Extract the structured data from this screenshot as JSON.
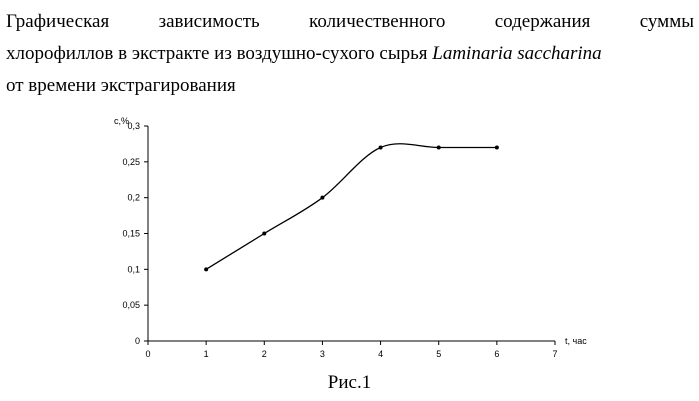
{
  "heading": {
    "line1_words": [
      "Графическая",
      "зависимость",
      "количественного",
      "содержания",
      "суммы"
    ],
    "line2_prefix": "хлорофиллов в экстракте из воздушно-сухого сырья ",
    "line2_italic": "Laminaria saccharina",
    "line3": "от времени экстрагирования"
  },
  "chart_data": {
    "type": "line",
    "xlabel": "t, час",
    "ylabel": "с,%",
    "xlim": [
      0,
      7
    ],
    "ylim": [
      0,
      0.3
    ],
    "x_ticks": [
      "0",
      "1",
      "2",
      "3",
      "4",
      "5",
      "6",
      "7"
    ],
    "y_ticks": [
      "0",
      "0,05",
      "0,1",
      "0,15",
      "0,2",
      "0,25",
      "0,3"
    ],
    "series": [
      {
        "x": [
          1,
          2,
          3,
          4,
          5,
          6
        ],
        "y": [
          0.1,
          0.15,
          0.2,
          0.27,
          0.27,
          0.27
        ]
      }
    ],
    "grid": false,
    "legend": "none",
    "line_color": "#000000"
  },
  "caption": "Рис.1"
}
